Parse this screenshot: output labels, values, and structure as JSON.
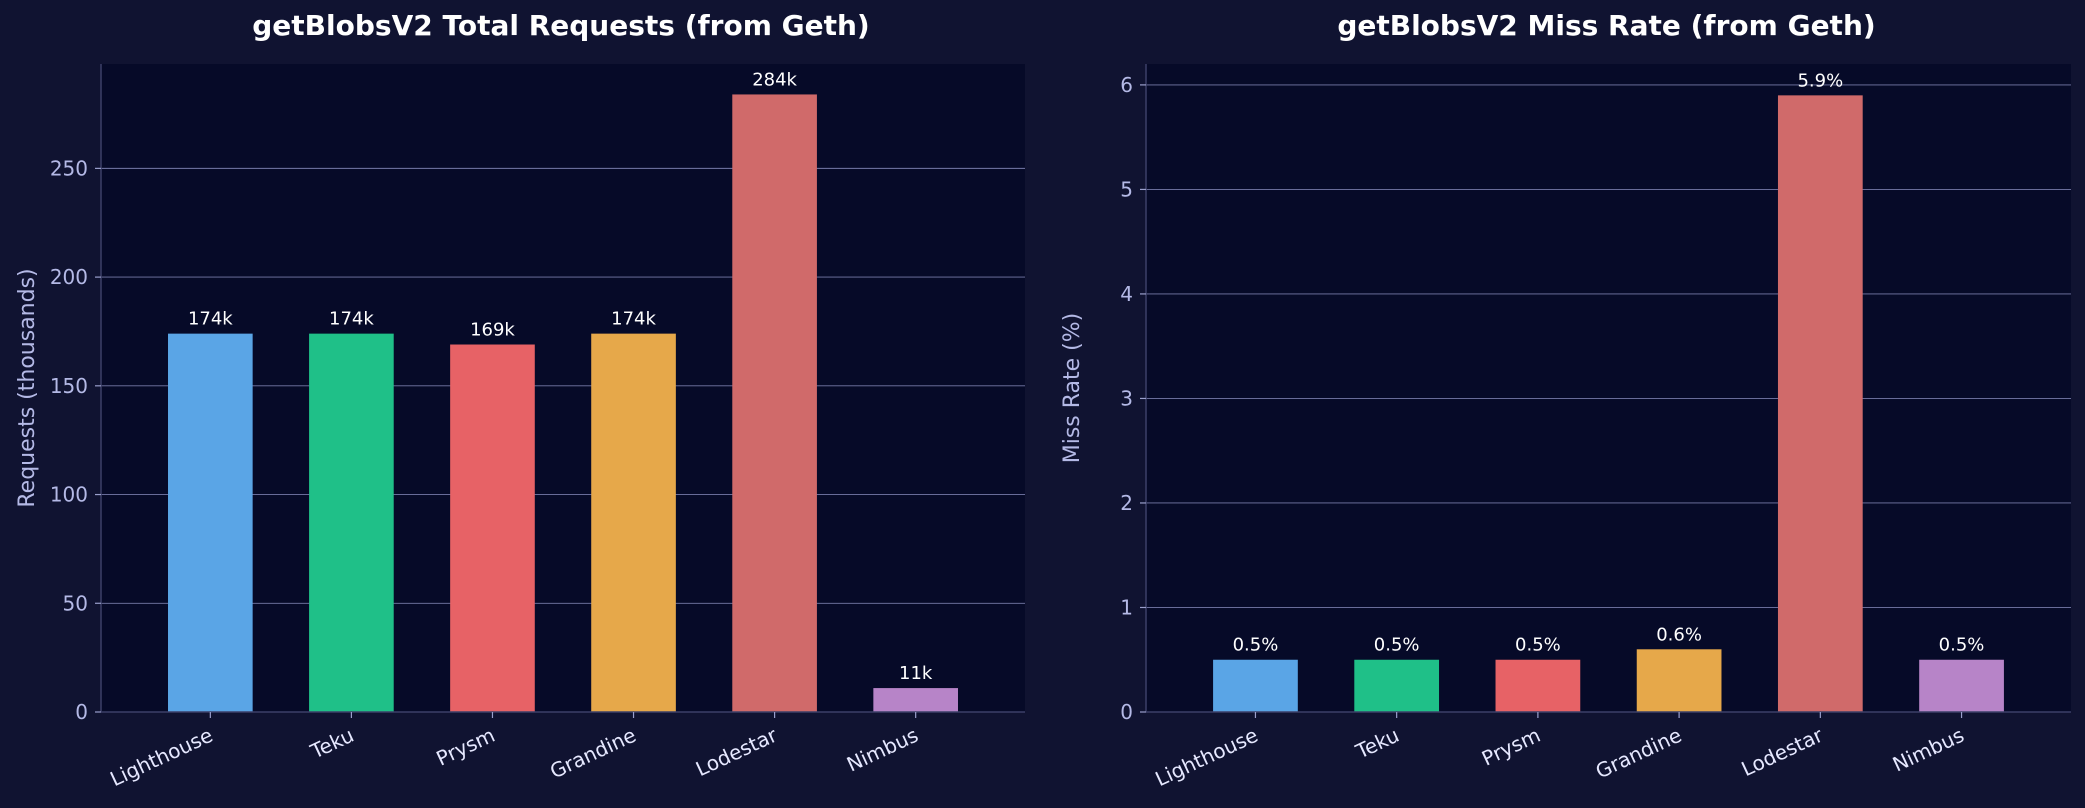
{
  "chart_data": [
    {
      "type": "bar",
      "title": "getBlobsV2 Total Requests (from Geth)",
      "xlabel": "",
      "ylabel": "Requests (thousands)",
      "categories": [
        "Lighthouse",
        "Teku",
        "Prysm",
        "Grandine",
        "Lodestar",
        "Nimbus"
      ],
      "values": [
        174,
        174,
        169,
        174,
        284,
        11
      ],
      "value_labels": [
        "174k",
        "174k",
        "169k",
        "174k",
        "284k",
        "11k"
      ],
      "colors": [
        "#5aa5e6",
        "#1fc088",
        "#e76266",
        "#e6a84a",
        "#d06a6a",
        "#b784c8"
      ],
      "ylim": [
        0,
        298
      ],
      "yticks": [
        0,
        50,
        100,
        150,
        200,
        250
      ],
      "ytick_labels": [
        "0",
        "50",
        "100",
        "150",
        "200",
        "250"
      ],
      "grid": true
    },
    {
      "type": "bar",
      "title": "getBlobsV2 Miss Rate (from Geth)",
      "xlabel": "",
      "ylabel": "Miss Rate (%)",
      "categories": [
        "Lighthouse",
        "Teku",
        "Prysm",
        "Grandine",
        "Lodestar",
        "Nimbus"
      ],
      "values": [
        0.5,
        0.5,
        0.5,
        0.6,
        5.9,
        0.5
      ],
      "value_labels": [
        "0.5%",
        "0.5%",
        "0.5%",
        "0.6%",
        "5.9%",
        "0.5%"
      ],
      "colors": [
        "#5aa5e6",
        "#1fc088",
        "#e76266",
        "#e6a84a",
        "#d06a6a",
        "#b784c8"
      ],
      "ylim": [
        0,
        6.2
      ],
      "yticks": [
        0,
        1,
        2,
        3,
        4,
        5,
        6
      ],
      "ytick_labels": [
        "0",
        "1",
        "2",
        "3",
        "4",
        "5",
        "6"
      ],
      "grid": true
    }
  ]
}
